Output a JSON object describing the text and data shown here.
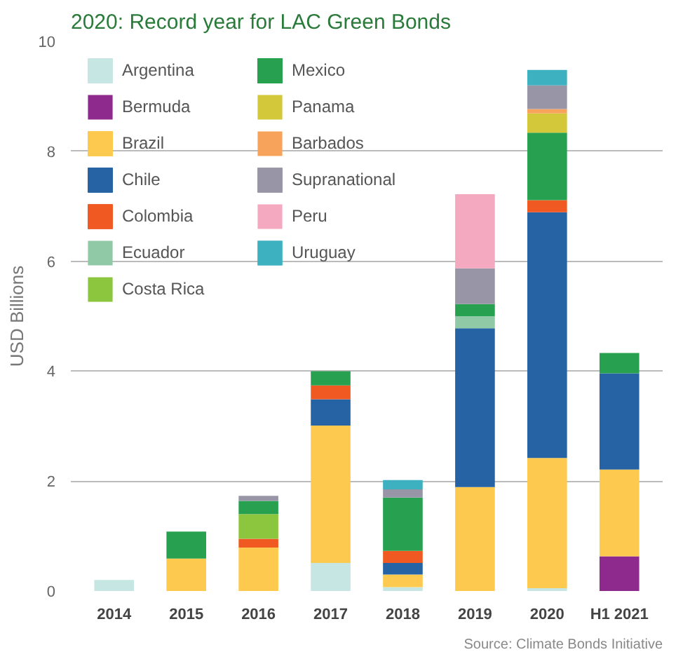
{
  "chart_data": {
    "type": "bar",
    "stacked": true,
    "title": "2020: Record year for LAC Green Bonds",
    "ylabel": "USD Billions",
    "annotations": [
      "Source: Climate Bonds Initiative"
    ],
    "categories": [
      "2014",
      "2015",
      "2016",
      "2017",
      "2018",
      "2019",
      "2020",
      "H1 2021"
    ],
    "ylim": [
      0,
      10
    ],
    "yticks": [
      0,
      2,
      4,
      6,
      8,
      10
    ],
    "grid": "y",
    "legend": "top left",
    "series": [
      {
        "name": "Argentina",
        "color": "#c6e6e3",
        "values": [
          0.2,
          null,
          null,
          0.51,
          0.07,
          null,
          0.05,
          null
        ]
      },
      {
        "name": "Bermuda",
        "color": "#8e2a8e",
        "values": [
          null,
          null,
          null,
          null,
          null,
          null,
          null,
          0.63
        ]
      },
      {
        "name": "Brazil",
        "color": "#fdc94f",
        "values": [
          null,
          0.59,
          0.79,
          2.5,
          0.23,
          1.89,
          2.37,
          1.58
        ]
      },
      {
        "name": "Chile",
        "color": "#2563a4",
        "values": [
          null,
          null,
          null,
          0.48,
          0.21,
          2.89,
          4.47,
          1.75
        ]
      },
      {
        "name": "Colombia",
        "color": "#f05a22",
        "values": [
          null,
          null,
          0.16,
          0.25,
          0.22,
          null,
          0.22,
          null
        ]
      },
      {
        "name": "Ecuador",
        "color": "#8fc9a5",
        "values": [
          null,
          null,
          null,
          null,
          null,
          0.22,
          null,
          null
        ]
      },
      {
        "name": "Costa Rica",
        "color": "#8cc63f",
        "values": [
          null,
          null,
          0.45,
          null,
          null,
          null,
          null,
          null
        ]
      },
      {
        "name": "Mexico",
        "color": "#27a14f",
        "values": [
          null,
          0.49,
          0.24,
          0.26,
          0.97,
          0.22,
          1.23,
          0.37
        ]
      },
      {
        "name": "Panama",
        "color": "#d3c73a",
        "values": [
          null,
          null,
          null,
          null,
          null,
          null,
          0.35,
          null
        ]
      },
      {
        "name": "Barbados",
        "color": "#f7a35c",
        "values": [
          null,
          null,
          null,
          null,
          null,
          null,
          0.08,
          null
        ]
      },
      {
        "name": "Supranational",
        "color": "#9896a6",
        "values": [
          null,
          null,
          0.09,
          null,
          0.15,
          0.65,
          0.43,
          null
        ]
      },
      {
        "name": "Peru",
        "color": "#f4a9c0",
        "values": [
          null,
          null,
          null,
          null,
          null,
          1.35,
          null,
          null
        ]
      },
      {
        "name": "Uruguay",
        "color": "#3eb1c0",
        "values": [
          null,
          null,
          null,
          null,
          0.17,
          null,
          0.28,
          null
        ]
      }
    ]
  }
}
